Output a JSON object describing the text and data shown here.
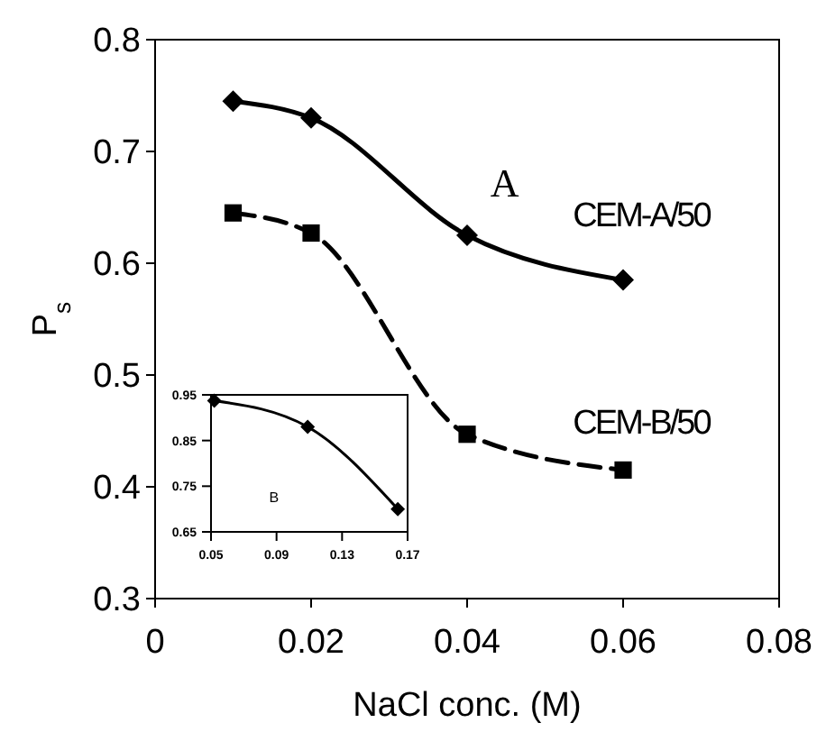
{
  "chart_data": [
    {
      "type": "line",
      "xlabel": "NaCl conc. (M)",
      "ylabel": "P$_{s}$",
      "x": [
        0.01,
        0.02,
        0.04,
        0.06
      ],
      "series": [
        {
          "name": "CEM-A/50",
          "color": "#000000",
          "values": [
            0.745,
            0.73,
            0.625,
            0.585
          ],
          "marker": "diamond",
          "line_style": "solid"
        },
        {
          "name": "CEM-B/50",
          "color": "#000000",
          "values": [
            0.645,
            0.627,
            0.447,
            0.415
          ],
          "marker": "square",
          "line_style": "dashed"
        }
      ],
      "xlim": [
        0,
        0.08
      ],
      "xticks": [
        0,
        0.02,
        0.04,
        0.06,
        0.08
      ],
      "ylim": [
        0.3,
        0.8
      ],
      "yticks": [
        0.3,
        0.4,
        0.5,
        0.6,
        0.7,
        0.8
      ],
      "annotations": [
        "A"
      ],
      "grid": false
    },
    {
      "type": "line",
      "x": [
        0.052,
        0.109,
        0.164
      ],
      "series": [
        {
          "color": "#000000",
          "values": [
            0.937,
            0.88,
            0.7
          ],
          "marker": "diamond",
          "line_style": "solid"
        }
      ],
      "xlim": [
        0.05,
        0.17
      ],
      "xticks": [
        0.05,
        0.09,
        0.13,
        0.17
      ],
      "ylim": [
        0.65,
        0.95
      ],
      "yticks": [
        0.65,
        0.75,
        0.85,
        0.95
      ],
      "annotations": [
        "B"
      ],
      "grid": false
    }
  ]
}
